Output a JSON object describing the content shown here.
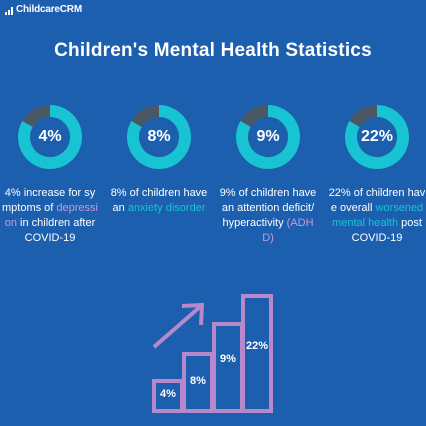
{
  "brand": {
    "name": "ChildcareCRM"
  },
  "title": "Children's Mental Health Statistics",
  "colors": {
    "background": "#1c5fae",
    "ring_track": "#4a5866",
    "ring_fill": "#18c3d3",
    "highlight_pink": "#c99ad8",
    "highlight_teal": "#18c3d3",
    "bars": "#b888cc"
  },
  "stats": [
    {
      "value_label": "4%",
      "description": [
        {
          "text": "4% increase for symptoms of "
        },
        {
          "text": "depression",
          "highlight": "pink"
        },
        {
          "text": " in children after COVID-19"
        }
      ]
    },
    {
      "value_label": "8%",
      "description": [
        {
          "text": "8% of children have an "
        },
        {
          "text": "anxiety disorder",
          "highlight": "teal"
        }
      ]
    },
    {
      "value_label": "9%",
      "description": [
        {
          "text": "9% of children have an attention deficit/hyperactivity "
        },
        {
          "text": "(ADHD)",
          "highlight": "pink"
        }
      ]
    },
    {
      "value_label": "22%",
      "description": [
        {
          "text": "22% of children have overall "
        },
        {
          "text": "worsened mental health",
          "highlight": "teal"
        },
        {
          "text": " post COVID-19"
        }
      ]
    }
  ],
  "bar_graphic": {
    "bars": [
      {
        "label": "4%"
      },
      {
        "label": "8%"
      },
      {
        "label": "9%"
      },
      {
        "label": "22%"
      }
    ]
  }
}
